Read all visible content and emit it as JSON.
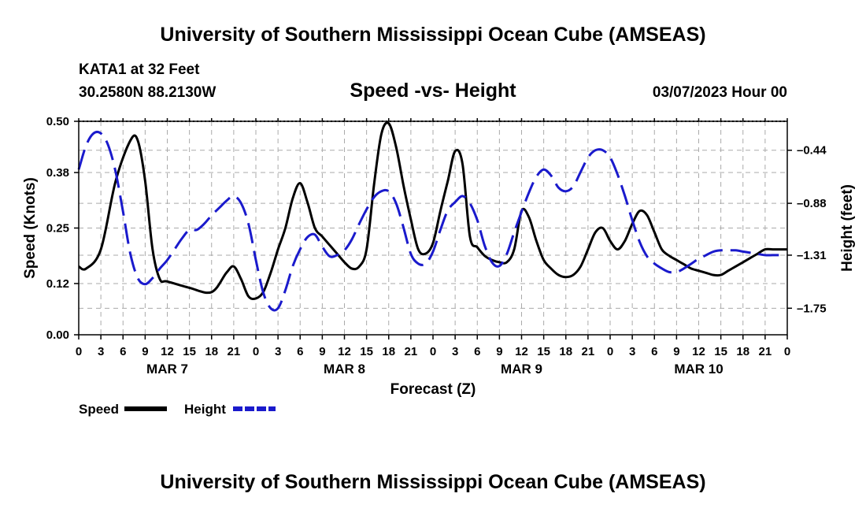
{
  "header": {
    "title": "University of Southern Mississippi Ocean Cube (AMSEAS)",
    "station": "KATA1 at 32 Feet",
    "coords": "30.2580N  88.2130W",
    "chart_title": "Speed -vs- Height",
    "datetime": "03/07/2023 Hour 00"
  },
  "footer": {
    "title": "University of Southern Mississippi Ocean Cube (AMSEAS)"
  },
  "colors": {
    "speed": "#000000",
    "height": "#1a1acc",
    "grid": "#aaaaaa"
  },
  "chart_data": {
    "type": "line",
    "title": "Speed -vs- Height",
    "xlabel": "Forecast (Z)",
    "ylabel": "Speed (Knots)",
    "y2label": "Height (feet)",
    "x_range_hours": [
      0,
      96
    ],
    "ylim": [
      0,
      0.5
    ],
    "y2lim": [
      -1.97,
      -0.2
    ],
    "yticks": [
      "0.00",
      "0.12",
      "0.25",
      "0.38",
      "0.50"
    ],
    "y2ticks": [
      {
        "value": -1.75,
        "label": "-1.75"
      },
      {
        "value": -1.31,
        "label": "-1.31"
      },
      {
        "value": -0.88,
        "label": "-0.88"
      },
      {
        "value": -0.44,
        "label": "-0.44"
      }
    ],
    "xtick_labels": [
      "0",
      "3",
      "6",
      "9",
      "12",
      "15",
      "18",
      "21",
      "0",
      "3",
      "6",
      "9",
      "12",
      "15",
      "18",
      "21",
      "0",
      "3",
      "6",
      "9",
      "12",
      "15",
      "18",
      "21",
      "0",
      "3",
      "6",
      "9",
      "12",
      "15",
      "18",
      "21",
      "0"
    ],
    "day_labels": [
      {
        "label": "MAR 7",
        "hour": 12
      },
      {
        "label": "MAR 8",
        "hour": 36
      },
      {
        "label": "MAR 9",
        "hour": 60
      },
      {
        "label": "MAR 10",
        "hour": 84
      }
    ],
    "legend": [
      {
        "name": "Speed",
        "style": "solid"
      },
      {
        "name": "Height",
        "style": "dashed"
      }
    ],
    "series": [
      {
        "name": "Speed",
        "axis": "left",
        "x": [
          0,
          1,
          3,
          5,
          7,
          8,
          9,
          10,
          11,
          12,
          15,
          18,
          20,
          21,
          22,
          23,
          24,
          25,
          26,
          27,
          28,
          29,
          30,
          31,
          32,
          33,
          34,
          35,
          36,
          37,
          38,
          39,
          40,
          41,
          42,
          43,
          44,
          45,
          46,
          47,
          48,
          49,
          50,
          51,
          52,
          53,
          54,
          55,
          56,
          57,
          58,
          59,
          60,
          61,
          62,
          63,
          64,
          65,
          66,
          67,
          68,
          69,
          70,
          71,
          72,
          73,
          74,
          75,
          76,
          77,
          78,
          79,
          80,
          81,
          82,
          83,
          84,
          85,
          86,
          87,
          88,
          89,
          90,
          91,
          92,
          93,
          94,
          95,
          96
        ],
        "values": [
          0.16,
          0.155,
          0.2,
          0.36,
          0.455,
          0.455,
          0.36,
          0.2,
          0.13,
          0.125,
          0.11,
          0.1,
          0.145,
          0.16,
          0.13,
          0.09,
          0.085,
          0.1,
          0.145,
          0.2,
          0.25,
          0.32,
          0.355,
          0.31,
          0.25,
          0.23,
          0.21,
          0.19,
          0.17,
          0.155,
          0.16,
          0.2,
          0.35,
          0.47,
          0.495,
          0.44,
          0.35,
          0.27,
          0.2,
          0.19,
          0.215,
          0.29,
          0.36,
          0.43,
          0.4,
          0.23,
          0.205,
          0.185,
          0.175,
          0.17,
          0.17,
          0.2,
          0.29,
          0.275,
          0.22,
          0.175,
          0.155,
          0.14,
          0.135,
          0.14,
          0.16,
          0.2,
          0.24,
          0.25,
          0.22,
          0.2,
          0.22,
          0.26,
          0.29,
          0.28,
          0.24,
          0.2,
          0.185,
          0.175,
          0.165,
          0.155,
          0.15,
          0.145,
          0.14,
          0.14,
          0.15,
          0.16,
          0.17,
          0.18,
          0.19,
          0.2,
          0.2,
          0.2,
          0.2
        ]
      },
      {
        "name": "Height",
        "axis": "right",
        "x": [
          0,
          1,
          2,
          3,
          4,
          5,
          6,
          7,
          8,
          9,
          10,
          11,
          12,
          13,
          14,
          15,
          16,
          17,
          18,
          19,
          20,
          21,
          22,
          23,
          24,
          25,
          26,
          27,
          28,
          29,
          30,
          31,
          32,
          33,
          34,
          35,
          36,
          37,
          38,
          39,
          40,
          41,
          42,
          43,
          44,
          45,
          46,
          47,
          48,
          49,
          50,
          51,
          52,
          53,
          54,
          55,
          56,
          57,
          58,
          59,
          60,
          61,
          62,
          63,
          64,
          65,
          66,
          67,
          68,
          69,
          70,
          71,
          72,
          73,
          74,
          75,
          76,
          77,
          78,
          79,
          80,
          81,
          82,
          83,
          84,
          85,
          86,
          87,
          88,
          89,
          90,
          91,
          92,
          93,
          94,
          95,
          96
        ],
        "values": [
          -0.6,
          -0.4,
          -0.3,
          -0.3,
          -0.4,
          -0.62,
          -0.95,
          -1.3,
          -1.5,
          -1.55,
          -1.5,
          -1.42,
          -1.35,
          -1.26,
          -1.17,
          -1.1,
          -1.1,
          -1.05,
          -0.98,
          -0.92,
          -0.86,
          -0.82,
          -0.88,
          -1.05,
          -1.35,
          -1.62,
          -1.75,
          -1.75,
          -1.6,
          -1.4,
          -1.26,
          -1.16,
          -1.14,
          -1.24,
          -1.32,
          -1.31,
          -1.27,
          -1.18,
          -1.05,
          -0.93,
          -0.83,
          -0.78,
          -0.78,
          -0.88,
          -1.08,
          -1.3,
          -1.38,
          -1.38,
          -1.28,
          -1.1,
          -0.94,
          -0.87,
          -0.82,
          -0.88,
          -1.02,
          -1.23,
          -1.37,
          -1.4,
          -1.3,
          -1.12,
          -0.95,
          -0.79,
          -0.66,
          -0.6,
          -0.65,
          -0.75,
          -0.78,
          -0.74,
          -0.62,
          -0.5,
          -0.44,
          -0.44,
          -0.5,
          -0.64,
          -0.82,
          -1.02,
          -1.2,
          -1.32,
          -1.38,
          -1.42,
          -1.45,
          -1.45,
          -1.42,
          -1.38,
          -1.34,
          -1.31,
          -1.28,
          -1.27,
          -1.27,
          -1.27,
          -1.28,
          -1.29,
          -1.3,
          -1.31,
          -1.31,
          -1.31,
          -1.31
        ]
      }
    ]
  }
}
